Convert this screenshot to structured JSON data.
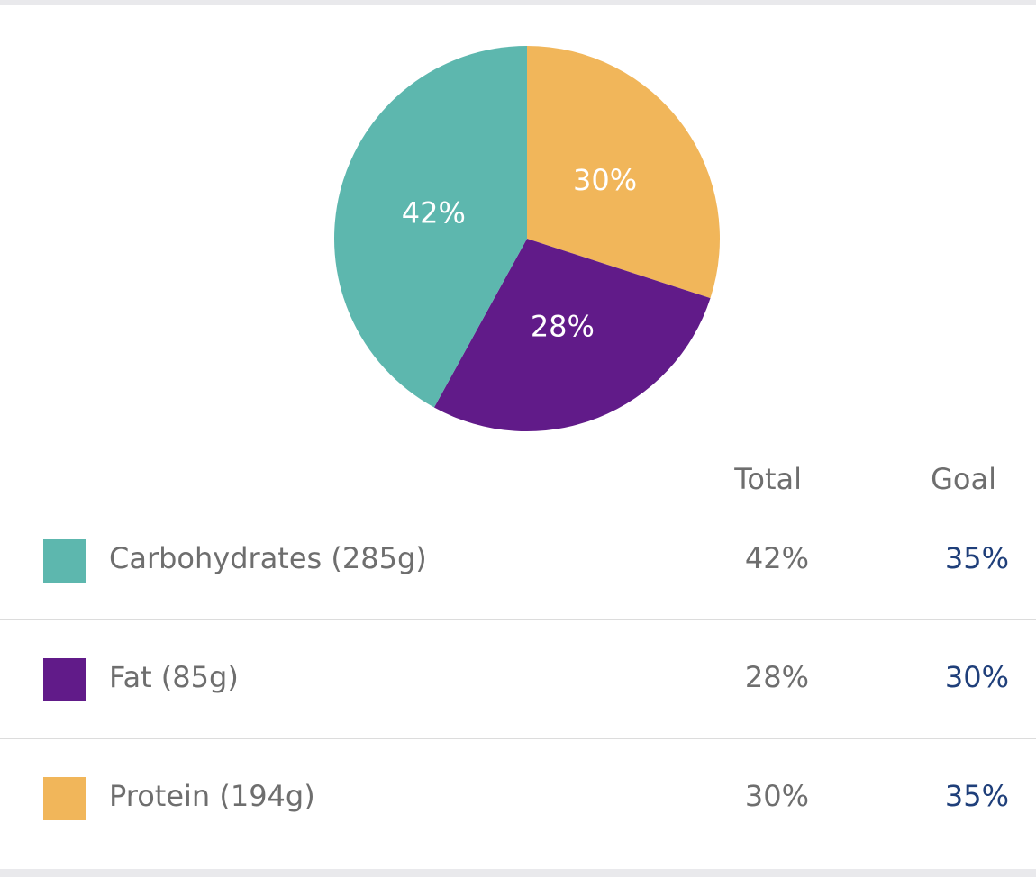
{
  "chart_data": {
    "type": "pie",
    "slices": [
      {
        "label": "Protein (194g)",
        "value": 30,
        "display": "30%",
        "color": "#f1b65a"
      },
      {
        "label": "Fat (85g)",
        "value": 28,
        "display": "28%",
        "color": "#611b89"
      },
      {
        "label": "Carbohydrates (285g)",
        "value": 42,
        "display": "42%",
        "color": "#5db7ae"
      }
    ]
  },
  "table": {
    "headers": {
      "total": "Total",
      "goal": "Goal"
    },
    "goal_color": "#1f3f7a",
    "rows": [
      {
        "label": "Carbohydrates (285g)",
        "total": "42%",
        "goal": "35%",
        "color": "#5db7ae"
      },
      {
        "label": "Fat (85g)",
        "total": "28%",
        "goal": "30%",
        "color": "#611b89"
      },
      {
        "label": "Protein (194g)",
        "total": "30%",
        "goal": "35%",
        "color": "#f1b65a"
      }
    ]
  }
}
